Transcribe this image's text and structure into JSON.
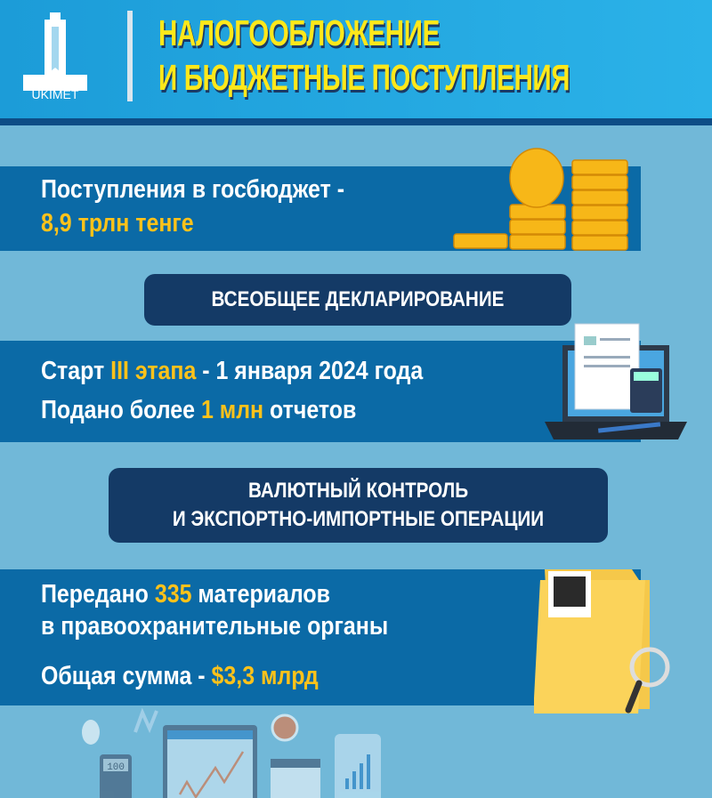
{
  "header": {
    "logo_text": "UKIMET",
    "title_line1": "НАЛОГООБЛОЖЕНИЕ",
    "title_line2": "И БЮДЖЕТНЫЕ ПОСТУПЛЕНИЯ"
  },
  "section1": {
    "line1": "Поступления в госбюджет -",
    "line2": "8,9 трлн тенге",
    "icon": "coins-icon"
  },
  "section2": {
    "heading": "ВСЕОБЩЕЕ ДЕКЛАРИРОВАНИЕ",
    "line1_a": "Старт ",
    "line1_b": "III этапа",
    "line1_c": " - 1 января 2024 года",
    "line2_a": "Подано более ",
    "line2_b": "1 млн",
    "line2_c": " отчетов",
    "icon": "laptop-document-icon"
  },
  "section3": {
    "heading_line1": "ВАЛЮТНЫЙ КОНТРОЛЬ",
    "heading_line2": "И ЭКСПОРТНО-ИМПОРТНЫЕ ОПЕРАЦИИ",
    "line1_a": "Передано ",
    "line1_b": "335",
    "line1_c": " материалов",
    "line2": "в правоохранительные органы",
    "line3_a": "Общая сумма - ",
    "line3_b": "$3,3 млрд",
    "icon": "folder-magnifier-icon"
  },
  "footer": {
    "calculator_display": "100"
  },
  "colors": {
    "header": "#1c9cd8",
    "title": "#ffe81a",
    "band": "#0b6aa6",
    "pill": "#143a66",
    "accent": "#ffc21a",
    "background": "#71b8d8"
  }
}
